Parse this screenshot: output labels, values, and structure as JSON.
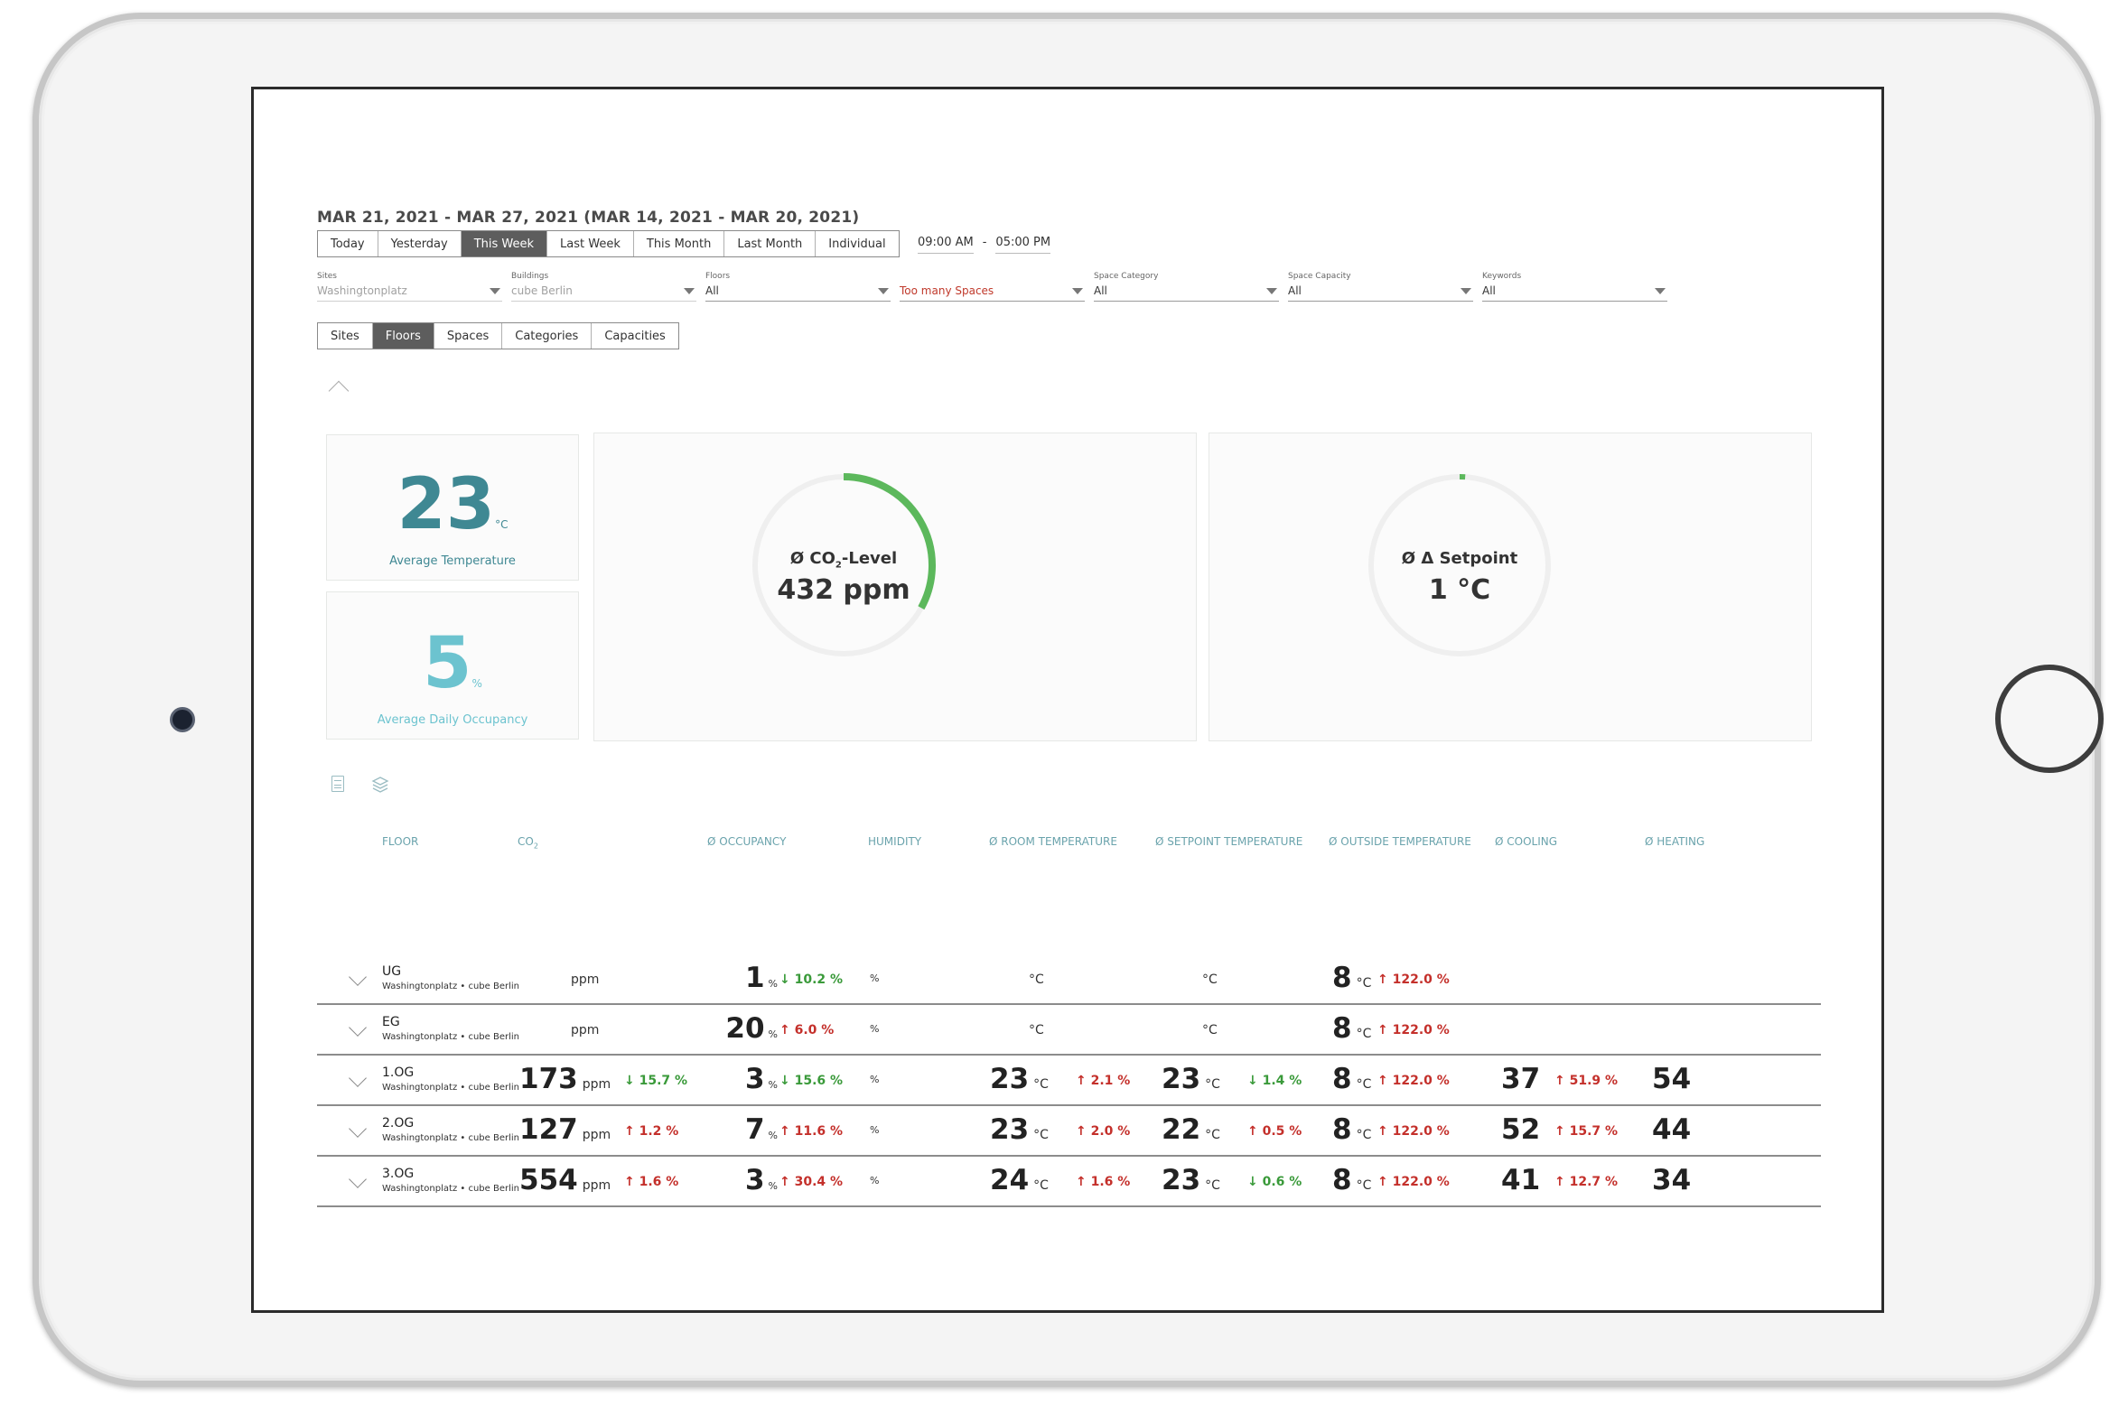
{
  "header": {
    "date_range": "MAR 21, 2021 - MAR 27, 2021 (MAR 14, 2021 - MAR 20, 2021)",
    "periods": [
      "Today",
      "Yesterday",
      "This Week",
      "Last Week",
      "This Month",
      "Last Month",
      "Individual"
    ],
    "active_period": "This Week",
    "time_from": "09:00 AM",
    "time_sep": "-",
    "time_to": "05:00 PM"
  },
  "filters": [
    {
      "label": "Sites",
      "value": "Washingtonplatz",
      "style": "muted"
    },
    {
      "label": "Buildings",
      "value": "cube Berlin",
      "style": "muted"
    },
    {
      "label": "Floors",
      "value": "All",
      "style": "normal"
    },
    {
      "label": "",
      "value": "Too many Spaces",
      "style": "warn"
    },
    {
      "label": "Space Category",
      "value": "All",
      "style": "normal"
    },
    {
      "label": "Space Capacity",
      "value": "All",
      "style": "normal"
    },
    {
      "label": "Keywords",
      "value": "All",
      "style": "normal"
    }
  ],
  "view_tabs": [
    "Sites",
    "Floors",
    "Spaces",
    "Categories",
    "Capacities"
  ],
  "active_view_tab": "Floors",
  "kpis": {
    "temperature": {
      "value": "23",
      "unit": "°C",
      "label": "Average Temperature"
    },
    "occupancy": {
      "value": "5",
      "unit": "%",
      "label": "Average Daily Occupancy"
    }
  },
  "gauges": {
    "co2": {
      "label_prefix": "Ø CO",
      "label_sub": "2",
      "label_suffix": "-Level",
      "value": "432 ppm",
      "fraction": 0.33,
      "color": "#5cb85c"
    },
    "setpoint": {
      "label": "Ø Δ Setpoint",
      "value": "1 °C",
      "fraction": 0.01,
      "color": "#5cb85c"
    }
  },
  "table": {
    "headers": {
      "floor": "FLOOR",
      "co2_prefix": "CO",
      "co2_sub": "2",
      "occupancy": "Ø OCCUPANCY",
      "humidity": "HUMIDITY",
      "room_temp": "Ø ROOM TEMPERATURE",
      "setpoint_temp": "Ø SETPOINT TEMPERATURE",
      "outside_temp": "Ø OUTSIDE TEMPERATURE",
      "cooling": "Ø COOLING",
      "heating": "Ø HEATING"
    },
    "rows": [
      {
        "name": "UG",
        "sub": "Washingtonplatz • cube Berlin",
        "co2": "",
        "co2_unit": "ppm",
        "co2_trend": "",
        "co2_dir": "",
        "occ": "1",
        "occ_unit": "%",
        "occ_trend": "↓ 10.2 %",
        "occ_dir": "down",
        "hum_unit": "%",
        "room": "",
        "room_unit": "°C",
        "room_trend": "",
        "room_dir": "",
        "set": "",
        "set_unit": "°C",
        "set_trend": "",
        "set_dir": "",
        "out": "8",
        "out_unit": "°C",
        "out_trend": "↑ 122.0 %",
        "out_dir": "up",
        "cool": "",
        "cool_trend": "",
        "cool_dir": "",
        "heat": ""
      },
      {
        "name": "EG",
        "sub": "Washingtonplatz • cube Berlin",
        "co2": "",
        "co2_unit": "ppm",
        "co2_trend": "",
        "co2_dir": "",
        "occ": "20",
        "occ_unit": "%",
        "occ_trend": "↑ 6.0 %",
        "occ_dir": "up",
        "hum_unit": "%",
        "room": "",
        "room_unit": "°C",
        "room_trend": "",
        "room_dir": "",
        "set": "",
        "set_unit": "°C",
        "set_trend": "",
        "set_dir": "",
        "out": "8",
        "out_unit": "°C",
        "out_trend": "↑ 122.0 %",
        "out_dir": "up",
        "cool": "",
        "cool_trend": "",
        "cool_dir": "",
        "heat": ""
      },
      {
        "name": "1.OG",
        "sub": "Washingtonplatz • cube Berlin",
        "co2": "173",
        "co2_unit": "ppm",
        "co2_trend": "↓ 15.7 %",
        "co2_dir": "down",
        "occ": "3",
        "occ_unit": "%",
        "occ_trend": "↓ 15.6 %",
        "occ_dir": "down",
        "hum_unit": "%",
        "room": "23",
        "room_unit": "°C",
        "room_trend": "↑ 2.1 %",
        "room_dir": "up",
        "set": "23",
        "set_unit": "°C",
        "set_trend": "↓ 1.4 %",
        "set_dir": "down",
        "out": "8",
        "out_unit": "°C",
        "out_trend": "↑ 122.0 %",
        "out_dir": "up",
        "cool": "37",
        "cool_trend": "↑ 51.9 %",
        "cool_dir": "up",
        "heat": "54"
      },
      {
        "name": "2.OG",
        "sub": "Washingtonplatz • cube Berlin",
        "co2": "127",
        "co2_unit": "ppm",
        "co2_trend": "↑ 1.2 %",
        "co2_dir": "up",
        "occ": "7",
        "occ_unit": "%",
        "occ_trend": "↑ 11.6 %",
        "occ_dir": "up",
        "hum_unit": "%",
        "room": "23",
        "room_unit": "°C",
        "room_trend": "↑ 2.0 %",
        "room_dir": "up",
        "set": "22",
        "set_unit": "°C",
        "set_trend": "↑ 0.5 %",
        "set_dir": "up",
        "out": "8",
        "out_unit": "°C",
        "out_trend": "↑ 122.0 %",
        "out_dir": "up",
        "cool": "52",
        "cool_trend": "↑ 15.7 %",
        "cool_dir": "up",
        "heat": "44"
      },
      {
        "name": "3.OG",
        "sub": "Washingtonplatz • cube Berlin",
        "co2": "554",
        "co2_unit": "ppm",
        "co2_trend": "↑ 1.6 %",
        "co2_dir": "up",
        "occ": "3",
        "occ_unit": "%",
        "occ_trend": "↑ 30.4 %",
        "occ_dir": "up",
        "hum_unit": "%",
        "room": "24",
        "room_unit": "°C",
        "room_trend": "↑ 1.6 %",
        "room_dir": "up",
        "set": "23",
        "set_unit": "°C",
        "set_trend": "↓ 0.6 %",
        "set_dir": "down",
        "out": "8",
        "out_unit": "°C",
        "out_trend": "↑ 122.0 %",
        "out_dir": "up",
        "cool": "41",
        "cool_trend": "↑ 12.7 %",
        "cool_dir": "up",
        "heat": "34"
      }
    ]
  }
}
